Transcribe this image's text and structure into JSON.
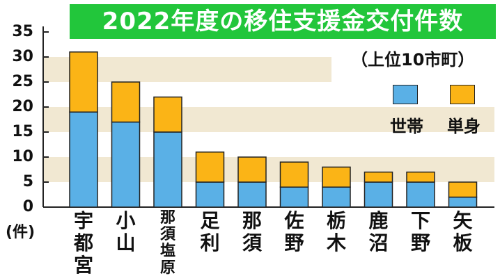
{
  "title": "2022年度の移住支援金交付件数",
  "subtitle": "（上位10市町）",
  "unit_label": "(件)",
  "legend": [
    {
      "label": "世帯",
      "color": "#5ab0e6"
    },
    {
      "label": "単身",
      "color": "#fbb416"
    }
  ],
  "colors": {
    "title_bg": "#22c63b",
    "band": "#f1e8d2"
  },
  "chart_data": {
    "type": "bar",
    "stacked": true,
    "title": "2022年度の移住支援金交付件数",
    "subtitle": "（上位10市町）",
    "ylabel": "(件)",
    "ylim": [
      0,
      35
    ],
    "yticks": [
      0,
      5,
      10,
      15,
      20,
      25,
      30,
      35
    ],
    "categories": [
      "宇都宮",
      "小山",
      "那須塩原",
      "足利",
      "那須",
      "佐野",
      "栃木",
      "鹿沼",
      "下野",
      "矢板"
    ],
    "series": [
      {
        "name": "世帯",
        "color": "#5ab0e6",
        "values": [
          19,
          17,
          15,
          5,
          5,
          4,
          4,
          5,
          5,
          2
        ]
      },
      {
        "name": "単身",
        "color": "#fbb416",
        "values": [
          12,
          8,
          7,
          6,
          5,
          5,
          4,
          2,
          2,
          3
        ]
      }
    ],
    "legend_position": "right"
  }
}
